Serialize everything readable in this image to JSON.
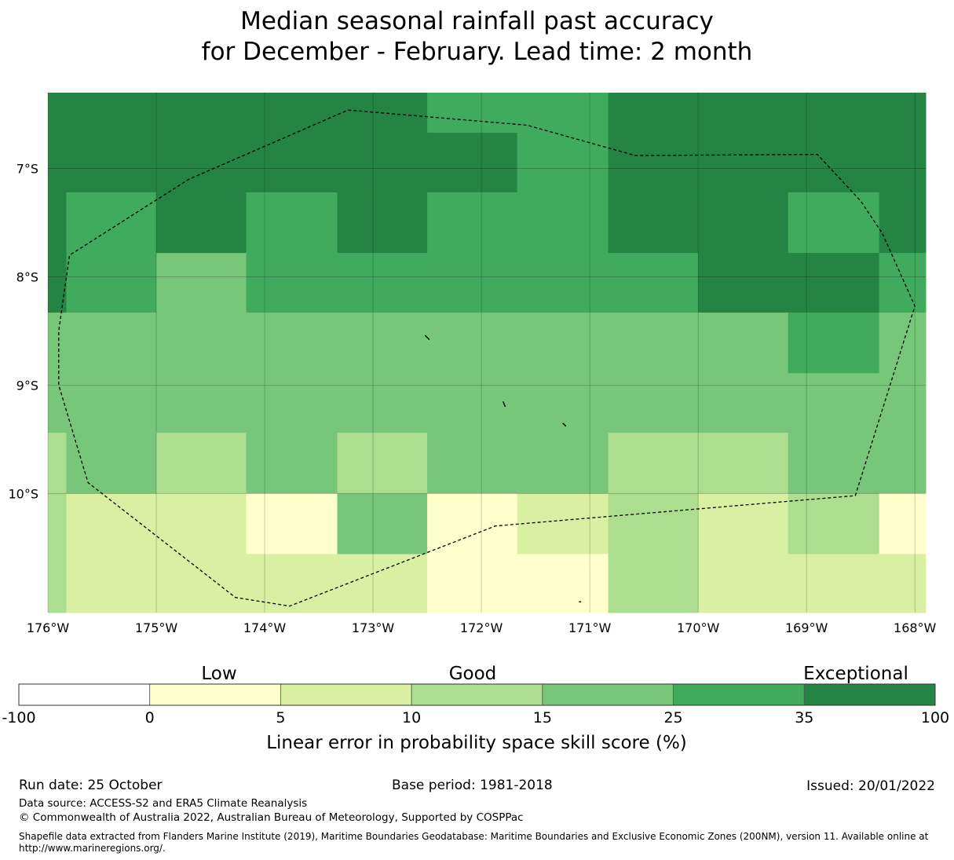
{
  "title": {
    "line1": "Median seasonal rainfall past accuracy",
    "line2": "for December - February. Lead time: 2 month"
  },
  "chart_data": {
    "type": "heatmap",
    "lon_range": [
      -176,
      -167.9
    ],
    "lat_range": [
      -11.1,
      -6.3
    ],
    "cell_size_deg": [
      0.833,
      0.556
    ],
    "x_ticks": [
      -176,
      -175,
      -174,
      -173,
      -172,
      -171,
      -170,
      -169,
      -168
    ],
    "x_tick_labels": [
      "176°W",
      "175°W",
      "174°W",
      "173°W",
      "172°W",
      "171°W",
      "170°W",
      "169°W",
      "168°W"
    ],
    "y_ticks": [
      -7,
      -8,
      -9,
      -10
    ],
    "y_tick_labels": [
      "7°S",
      "8°S",
      "9°S",
      "10°S"
    ],
    "grid": true,
    "category_colors": [
      "#ffffff",
      "#ffffcc",
      "#d9f0a3",
      "#addd8e",
      "#78c679",
      "#41ab5d",
      "#238443"
    ],
    "cell_columns_left_lon": [
      -176.83,
      -175.83,
      -175.0,
      -174.17,
      -173.33,
      -172.5,
      -171.67,
      -170.83,
      -170.0,
      -169.17,
      -168.33
    ],
    "cell_rows_top_lat": [
      -6.3,
      -6.67,
      -7.22,
      -7.78,
      -8.33,
      -8.89,
      -9.44,
      -10.0,
      -10.56
    ],
    "cells": [
      [
        6,
        6,
        6,
        6,
        6,
        5,
        5,
        6,
        6,
        6,
        6
      ],
      [
        6,
        6,
        6,
        6,
        6,
        6,
        5,
        6,
        6,
        6,
        6
      ],
      [
        6,
        5,
        6,
        5,
        6,
        5,
        5,
        6,
        6,
        5,
        6
      ],
      [
        6,
        5,
        4,
        5,
        5,
        5,
        5,
        5,
        6,
        6,
        5
      ],
      [
        4,
        4,
        4,
        4,
        4,
        4,
        4,
        4,
        4,
        5,
        4
      ],
      [
        4,
        4,
        4,
        4,
        4,
        4,
        4,
        4,
        4,
        4,
        4
      ],
      [
        3,
        4,
        3,
        4,
        3,
        4,
        4,
        3,
        3,
        4,
        4
      ],
      [
        3,
        2,
        2,
        1,
        4,
        1,
        2,
        3,
        2,
        3,
        1
      ],
      [
        3,
        2,
        2,
        2,
        2,
        1,
        1,
        3,
        2,
        2,
        2
      ]
    ],
    "boundary_lonlat": [
      [
        -173.23,
        -6.46
      ],
      [
        -171.58,
        -6.6
      ],
      [
        -170.58,
        -6.88
      ],
      [
        -168.9,
        -6.87
      ],
      [
        -168.5,
        -7.3
      ],
      [
        -168.3,
        -7.6
      ],
      [
        -168.0,
        -8.27
      ],
      [
        -168.55,
        -10.02
      ],
      [
        -171.87,
        -10.3
      ],
      [
        -173.77,
        -11.04
      ],
      [
        -174.27,
        -10.96
      ],
      [
        -175.63,
        -9.9
      ],
      [
        -175.9,
        -9.0
      ],
      [
        -175.9,
        -8.5
      ],
      [
        -175.8,
        -7.8
      ],
      [
        -174.7,
        -7.1
      ],
      [
        -173.23,
        -6.46
      ]
    ],
    "islands_lonlat": [
      [
        [
          -172.52,
          -8.54
        ],
        [
          -172.48,
          -8.58
        ]
      ],
      [
        [
          -171.8,
          -9.15
        ],
        [
          -171.78,
          -9.2
        ]
      ],
      [
        [
          -171.25,
          -9.35
        ],
        [
          -171.22,
          -9.38
        ]
      ],
      [
        [
          -171.1,
          -11.0
        ],
        [
          -171.08,
          -11.0
        ]
      ]
    ]
  },
  "legend": {
    "category_labels": [
      "Low",
      "Good",
      "Exceptional"
    ],
    "boundaries": [
      "-100",
      "0",
      "5",
      "10",
      "15",
      "25",
      "35",
      "100"
    ],
    "colors": [
      "#ffffff",
      "#ffffcc",
      "#d9f0a3",
      "#addd8e",
      "#78c679",
      "#41ab5d",
      "#238443"
    ],
    "axis_label": "Linear error in probability space skill score (%)"
  },
  "footer": {
    "run_date": "Run date: 25 October",
    "base_period": "Base period: 1981-2018",
    "issued": "Issued: 20/01/2022",
    "data_source": "Data source: ACCESS-S2 and ERA5 Climate Reanalysis",
    "copyright": "© Commonwealth of Australia 2022, Australian Bureau of Meteorology, Supported by COSPPac",
    "shapefile": "Shapefile data extracted from Flanders Marine Institute (2019), Maritime Boundaries Geodatabase: Maritime Boundaries and Exclusive Economic Zones (200NM), version 11. Available online at http://www.marineregions.org/."
  }
}
